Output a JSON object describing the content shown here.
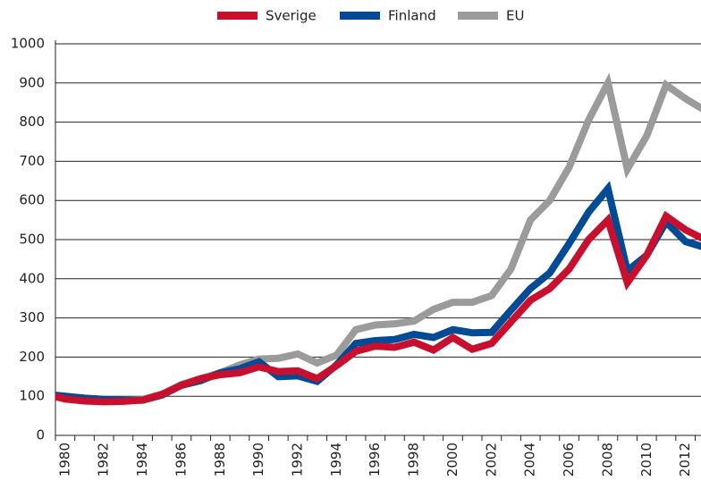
{
  "chart_data": {
    "type": "line",
    "x": [
      1979,
      1980,
      1981,
      1982,
      1983,
      1984,
      1985,
      1986,
      1987,
      1988,
      1989,
      1990,
      1991,
      1992,
      1993,
      1994,
      1995,
      1996,
      1997,
      1998,
      1999,
      2000,
      2001,
      2002,
      2003,
      2004,
      2005,
      2006,
      2007,
      2008,
      2009,
      2010,
      2011,
      2012,
      2013
    ],
    "series": [
      {
        "name": "Sverige",
        "color": "#c8102e",
        "values": [
          105,
          93,
          88,
          86,
          87,
          90,
          105,
          128,
          145,
          155,
          160,
          175,
          163,
          165,
          145,
          178,
          215,
          228,
          225,
          238,
          218,
          250,
          220,
          235,
          290,
          345,
          375,
          425,
          500,
          550,
          390,
          460,
          560,
          525,
          500
        ]
      },
      {
        "name": "Finland",
        "color": "#004a96",
        "values": [
          105,
          100,
          95,
          92,
          91,
          90,
          103,
          128,
          140,
          160,
          170,
          188,
          150,
          152,
          138,
          180,
          235,
          242,
          245,
          258,
          250,
          270,
          262,
          263,
          320,
          375,
          415,
          490,
          570,
          630,
          420,
          460,
          545,
          495,
          480
        ]
      },
      {
        "name": "EU",
        "color": "#9b9b9b",
        "values": [
          105,
          100,
          95,
          92,
          91,
          92,
          105,
          130,
          145,
          160,
          180,
          195,
          197,
          208,
          185,
          205,
          270,
          282,
          285,
          292,
          322,
          340,
          340,
          357,
          425,
          550,
          600,
          685,
          805,
          900,
          680,
          765,
          895,
          860,
          830
        ]
      }
    ],
    "xlim": [
      1979.5,
      2012.8
    ],
    "xticks": [
      1980,
      1982,
      1984,
      1986,
      1988,
      1990,
      1992,
      1994,
      1996,
      1998,
      2000,
      2002,
      2004,
      2006,
      2008,
      2010,
      2012
    ],
    "ylim": [
      0,
      1000
    ],
    "yticks": [
      0,
      100,
      200,
      300,
      400,
      500,
      600,
      700,
      800,
      900,
      1000
    ],
    "grid": true,
    "legend": "top"
  }
}
